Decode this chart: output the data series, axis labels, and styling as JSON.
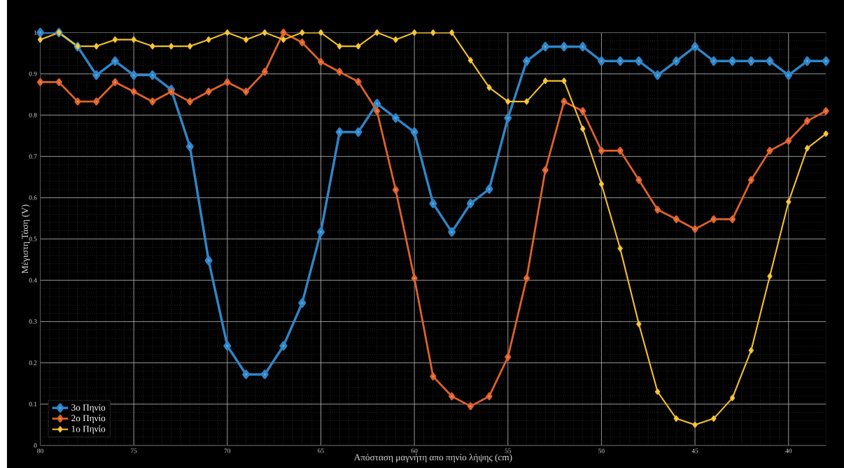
{
  "chart_data": {
    "type": "line",
    "xlabel": "Απόσταση μαγνήτη απο πηνίο λήψης (cm)",
    "ylabel": "Μέγιστη Τάση (V)",
    "x": [
      80,
      79,
      78,
      77,
      76,
      75,
      74,
      73,
      72,
      71,
      70,
      69,
      68,
      67,
      66,
      65,
      64,
      63,
      62,
      61,
      60,
      59,
      58,
      57,
      56,
      55,
      54,
      53,
      52,
      51,
      50,
      49,
      48,
      47,
      46,
      45,
      44,
      43,
      42,
      41,
      40,
      39,
      38
    ],
    "series": [
      {
        "name": "3ο Πηνίο",
        "color": "#2e86c8",
        "values": [
          1,
          1,
          0.966,
          0.897,
          0.931,
          0.897,
          0.897,
          0.862,
          0.724,
          0.448,
          0.241,
          0.172,
          0.172,
          0.241,
          0.345,
          0.517,
          0.759,
          0.759,
          0.828,
          0.793,
          0.759,
          0.586,
          0.517,
          0.586,
          0.621,
          0.793,
          0.931,
          0.966,
          0.966,
          0.966,
          0.931,
          0.931,
          0.931,
          0.897,
          0.931,
          0.966,
          0.931,
          0.931,
          0.931,
          0.931,
          0.897,
          0.931,
          0.931
        ]
      },
      {
        "name": "2ο Πηνίο",
        "color": "#e0622a",
        "values": [
          0.88,
          0.88,
          0.833,
          0.833,
          0.88,
          0.857,
          0.833,
          0.857,
          0.833,
          0.857,
          0.88,
          0.857,
          0.905,
          1,
          0.976,
          0.929,
          0.905,
          0.881,
          0.81,
          0.619,
          0.405,
          0.167,
          0.119,
          0.095,
          0.119,
          0.214,
          0.405,
          0.667,
          0.833,
          0.81,
          0.714,
          0.714,
          0.643,
          0.571,
          0.548,
          0.524,
          0.548,
          0.548,
          0.643,
          0.714,
          0.738,
          0.786,
          0.81
        ]
      },
      {
        "name": "1ο Πηνίο",
        "color": "#f2c12e",
        "values": [
          0.983,
          1,
          0.967,
          0.967,
          0.983,
          0.983,
          0.967,
          0.967,
          0.967,
          0.983,
          1,
          0.983,
          1,
          0.983,
          1,
          1,
          0.967,
          0.967,
          1,
          0.983,
          1,
          1,
          1,
          0.933,
          0.867,
          0.833,
          0.833,
          0.883,
          0.883,
          0.767,
          0.633,
          0.477,
          0.294,
          0.13,
          0.065,
          0.05,
          0.065,
          0.115,
          0.23,
          0.41,
          0.59,
          0.72,
          0.755
        ]
      }
    ],
    "xlim": [
      80,
      38
    ],
    "ylim": [
      0,
      1
    ],
    "xticks": [
      80,
      75,
      70,
      65,
      60,
      55,
      50,
      45,
      40
    ],
    "yticks": [
      0,
      0.1,
      0.2,
      0.3,
      0.4,
      0.5,
      0.6,
      0.7,
      0.8,
      0.9,
      1
    ],
    "grid": true,
    "legend": "bottom left",
    "marker": "diamond",
    "line_style": "solid"
  }
}
